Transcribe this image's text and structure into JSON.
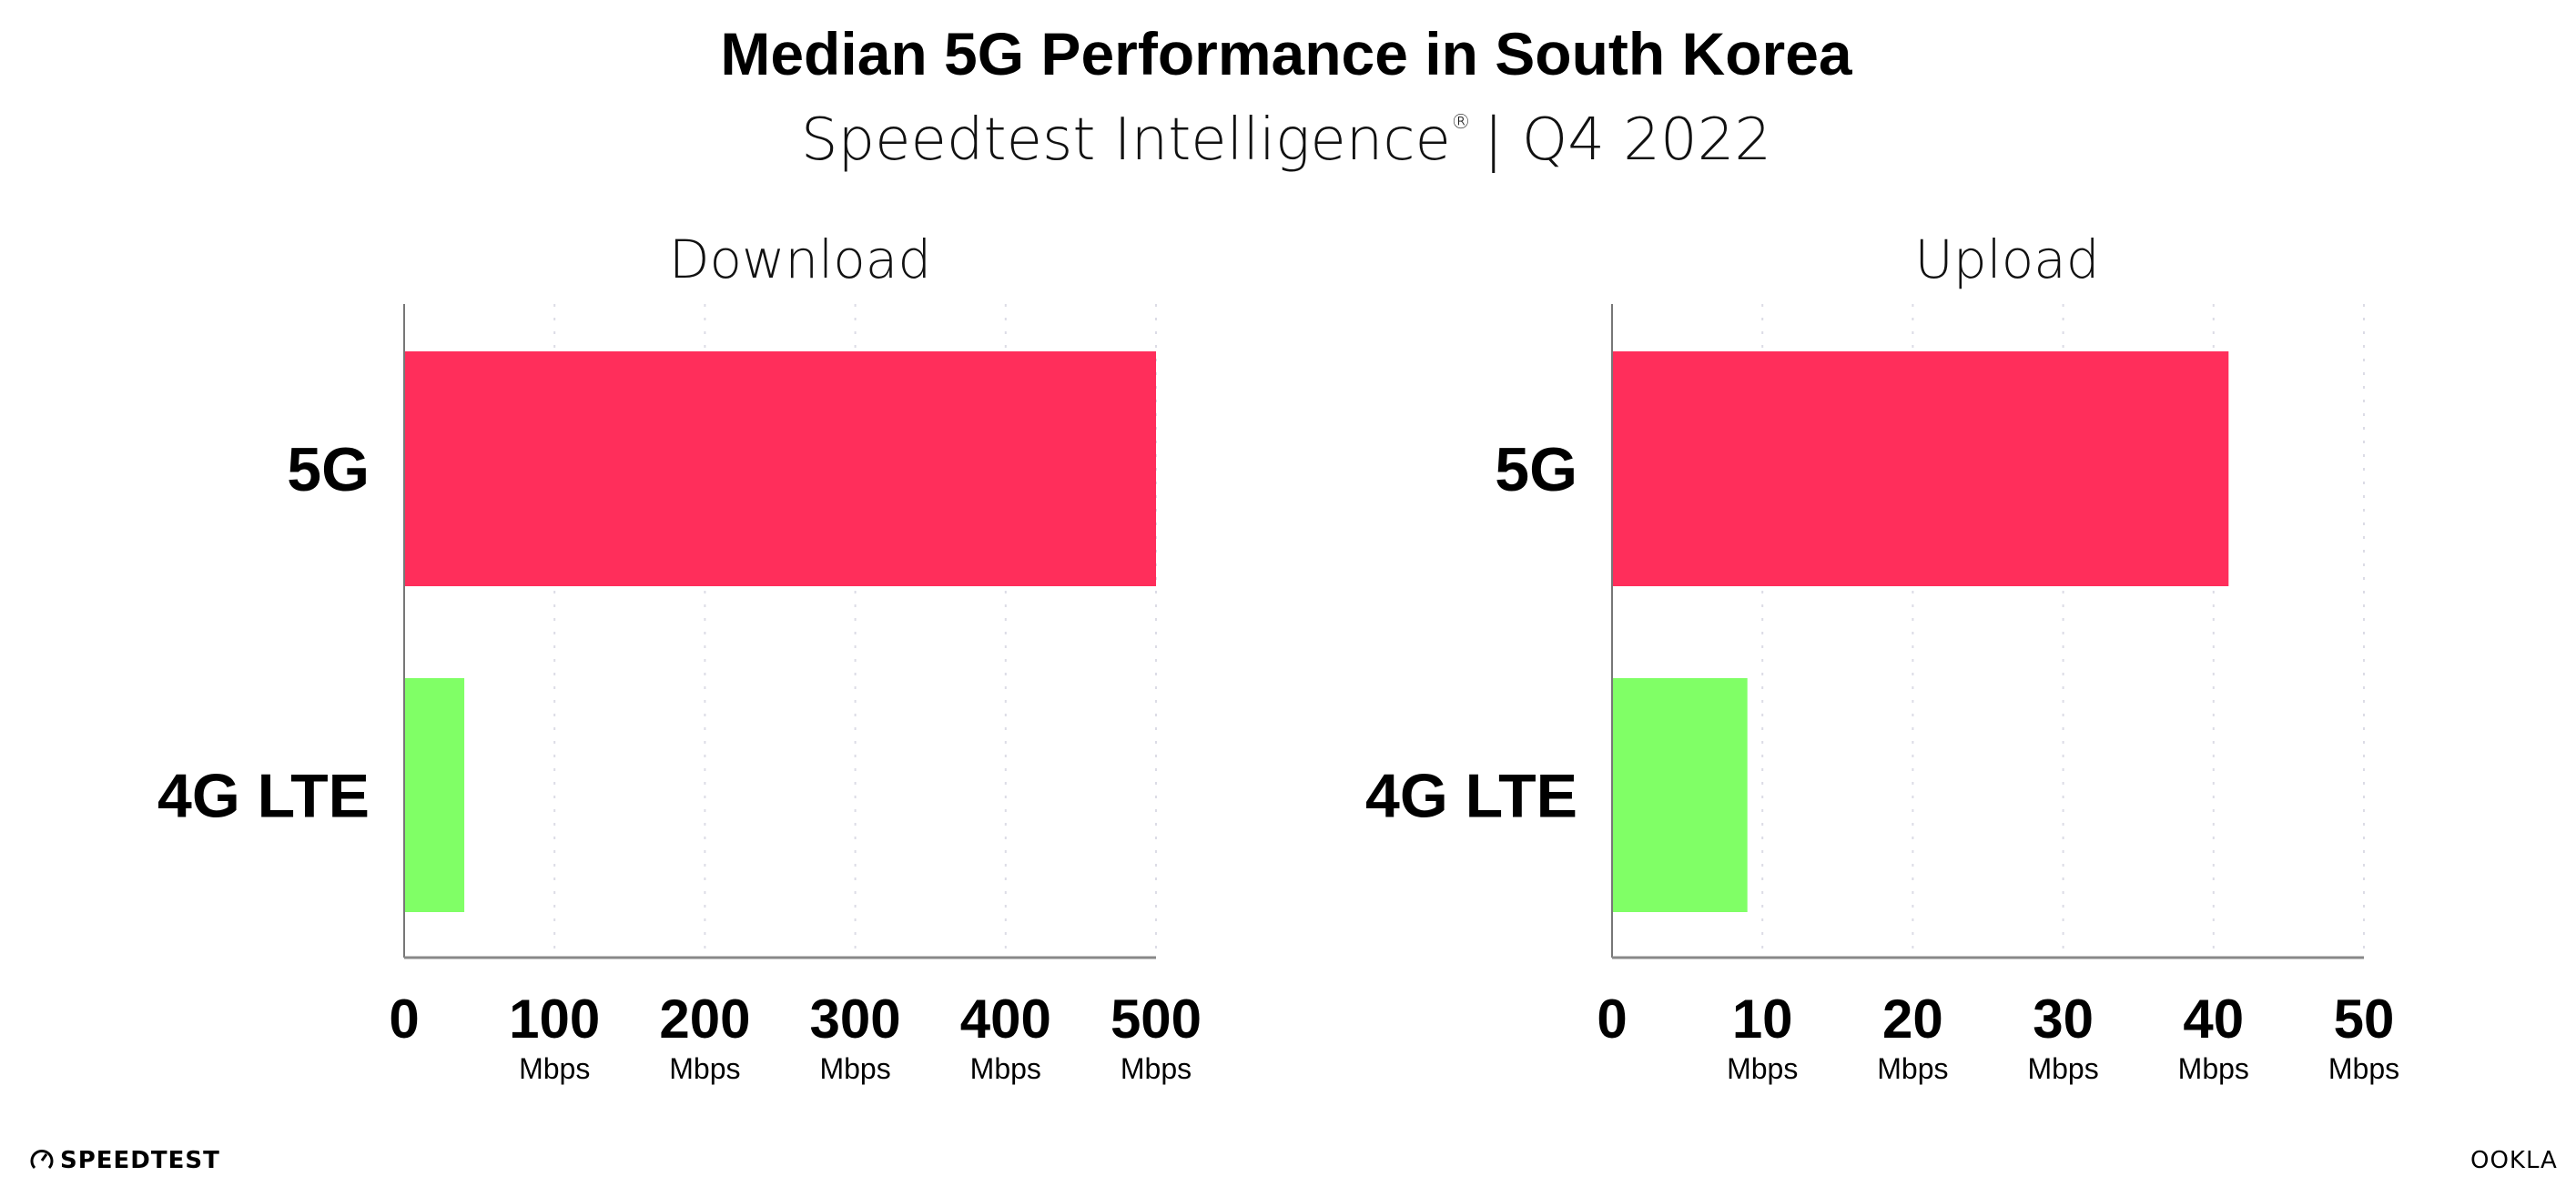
{
  "header": {
    "title": "Median 5G Performance in South Korea",
    "subtitle": "Speedtest Intelligence",
    "subtitle_mark": "®",
    "subtitle_period": "| Q4 2022"
  },
  "chart_data": [
    {
      "type": "bar",
      "orientation": "horizontal",
      "title": "Download",
      "categories": [
        "5G",
        "4G LTE"
      ],
      "values": [
        500,
        40
      ],
      "colors": [
        "#ff2e5b",
        "#80ff66"
      ],
      "xlim": [
        0,
        500
      ],
      "ticks": [
        "0",
        "100",
        "200",
        "300",
        "400",
        "500"
      ],
      "tick_values": [
        0,
        100,
        200,
        300,
        400,
        500
      ],
      "tick_unit": "Mbps",
      "grid": "vertical dotted"
    },
    {
      "type": "bar",
      "orientation": "horizontal",
      "title": "Upload",
      "categories": [
        "5G",
        "4G LTE"
      ],
      "values": [
        41,
        9
      ],
      "colors": [
        "#ff2e5b",
        "#80ff66"
      ],
      "xlim": [
        0,
        50
      ],
      "ticks": [
        "0",
        "10",
        "20",
        "30",
        "40",
        "50"
      ],
      "tick_values": [
        0,
        10,
        20,
        30,
        40,
        50
      ],
      "tick_unit": "Mbps",
      "grid": "vertical dotted"
    }
  ],
  "footer": {
    "left_logo": "SPEEDTEST",
    "right_logo": "OOKLA",
    "left_icon": "speedometer-icon"
  }
}
